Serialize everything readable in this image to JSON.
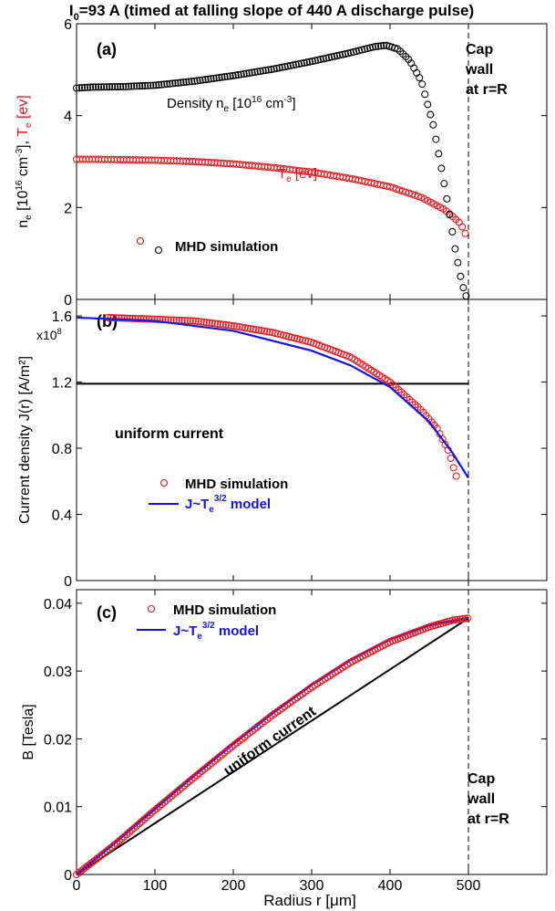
{
  "figure": {
    "title_main": "I",
    "title_sub": "0",
    "title_rest": "=93 A (timed at falling slope of 440 A discharge pulse)"
  },
  "colors": {
    "black": "#000000",
    "red": "#e8141b",
    "blue": "#1414e0"
  },
  "chart_data": [
    {
      "panel": "(a)",
      "type": "scatter",
      "xlim": [
        0,
        600
      ],
      "ylim": [
        0,
        6
      ],
      "yticks": [
        "0",
        "2",
        "4",
        "6"
      ],
      "xticks": [
        "0",
        "100",
        "200",
        "300",
        "400",
        "500"
      ],
      "ylabel": {
        "p1": "n",
        "s1": "e",
        "p2": " [10",
        "s2": "16",
        "p3": " cm",
        "s3": "-3",
        "p4": "], ",
        "p5": "T",
        "s5": "e",
        "p6": " [ev]"
      },
      "annotations": {
        "density": {
          "p1": "Density n",
          "s1": "e",
          "p2": " [10",
          "s2": "16",
          "p3": " cm",
          "s3": "-3",
          "p4": "]"
        },
        "te": {
          "p1": "T",
          "s1": "e",
          "p2": " [ev]"
        },
        "wall": [
          "Cap",
          "wall",
          "at r=R"
        ]
      },
      "legend": {
        "label": "MHD simulation"
      },
      "series": [
        {
          "key": "density",
          "points": [
            [
              0,
              4.6
            ],
            [
              20,
              4.62
            ],
            [
              60,
              4.63
            ],
            [
              100,
              4.66
            ],
            [
              150,
              4.75
            ],
            [
              200,
              4.87
            ],
            [
              250,
              5.01
            ],
            [
              300,
              5.18
            ],
            [
              350,
              5.37
            ],
            [
              380,
              5.5
            ],
            [
              395,
              5.53
            ],
            [
              410,
              5.45
            ],
            [
              425,
              5.2
            ],
            [
              440,
              4.75
            ],
            [
              455,
              3.8
            ],
            [
              465,
              2.9
            ],
            [
              475,
              1.95
            ],
            [
              483,
              1.1
            ],
            [
              490,
              0.5
            ],
            [
              495,
              0.15
            ],
            [
              499,
              0
            ]
          ]
        },
        {
          "key": "te",
          "points": [
            [
              0,
              3.05
            ],
            [
              20,
              3.05
            ],
            [
              100,
              3.03
            ],
            [
              150,
              3.0
            ],
            [
              200,
              2.95
            ],
            [
              250,
              2.87
            ],
            [
              300,
              2.77
            ],
            [
              350,
              2.63
            ],
            [
              400,
              2.45
            ],
            [
              440,
              2.22
            ],
            [
              470,
              1.95
            ],
            [
              490,
              1.65
            ],
            [
              497,
              1.4
            ],
            [
              499,
              1.2
            ]
          ]
        }
      ]
    },
    {
      "panel": "(b)",
      "type": "line",
      "xlim": [
        0,
        600
      ],
      "ylim": [
        0,
        1.7
      ],
      "y_multiplier": "x10",
      "y_multiplier_exp": "8",
      "yticks": [
        "0",
        "0.4",
        "0.8",
        "1.2",
        "1.6"
      ],
      "xticks": [
        "0",
        "100",
        "200",
        "300",
        "400",
        "500"
      ],
      "ylabel": "Current density J(r) [A/m²]",
      "uniform_label": "uniform current",
      "legend": {
        "mhd": "MHD simulation",
        "model_p1": "J~T",
        "model_s1": "e",
        "model_sup": "3/2",
        "model_p2": " model"
      },
      "uniform_value": 1.19,
      "series": [
        {
          "key": "mhd",
          "points": [
            [
              40,
              1.59
            ],
            [
              100,
              1.58
            ],
            [
              150,
              1.57
            ],
            [
              200,
              1.54
            ],
            [
              250,
              1.5
            ],
            [
              300,
              1.44
            ],
            [
              350,
              1.35
            ],
            [
              400,
              1.2
            ],
            [
              440,
              1.03
            ],
            [
              460,
              0.92
            ],
            [
              475,
              0.78
            ],
            [
              483,
              0.65
            ],
            [
              487,
              0.6
            ]
          ]
        },
        {
          "key": "model",
          "points": [
            [
              0,
              1.59
            ],
            [
              100,
              1.57
            ],
            [
              200,
              1.51
            ],
            [
              300,
              1.39
            ],
            [
              350,
              1.3
            ],
            [
              400,
              1.17
            ],
            [
              450,
              0.96
            ],
            [
              480,
              0.77
            ],
            [
              500,
              0.62
            ]
          ]
        }
      ]
    },
    {
      "panel": "(c)",
      "type": "line",
      "xlim": [
        0,
        600
      ],
      "ylim": [
        0,
        0.042
      ],
      "yticks": [
        "0",
        "0.01",
        "0.02",
        "0.03",
        "0.04"
      ],
      "xticks": [
        "0",
        "100",
        "200",
        "300",
        "400",
        "500"
      ],
      "ylabel": "B [Tesla]",
      "xlabel": "Radius r [μm]",
      "uniform_label": "uniform current",
      "legend": {
        "mhd": "MHD simulation",
        "model_p1": "J~T",
        "model_s1": "e",
        "model_sup": "3/2",
        "model_p2": " model"
      },
      "annotations": {
        "wall": [
          "Cap",
          "wall",
          "at r=R"
        ]
      },
      "series": [
        {
          "key": "mhd",
          "points": [
            [
              0,
              0
            ],
            [
              50,
              0.0045
            ],
            [
              100,
              0.0095
            ],
            [
              150,
              0.0143
            ],
            [
              200,
              0.019
            ],
            [
              250,
              0.0235
            ],
            [
              300,
              0.0276
            ],
            [
              350,
              0.0313
            ],
            [
              400,
              0.0343
            ],
            [
              450,
              0.0365
            ],
            [
              480,
              0.0375
            ],
            [
              500,
              0.0378
            ]
          ]
        },
        {
          "key": "model",
          "points": [
            [
              0,
              0
            ],
            [
              50,
              0.0048
            ],
            [
              100,
              0.0097
            ],
            [
              150,
              0.0146
            ],
            [
              200,
              0.0193
            ],
            [
              250,
              0.0238
            ],
            [
              300,
              0.028
            ],
            [
              350,
              0.0317
            ],
            [
              400,
              0.0347
            ],
            [
              450,
              0.0368
            ],
            [
              500,
              0.0378
            ]
          ]
        },
        {
          "key": "uniform",
          "points": [
            [
              0,
              0
            ],
            [
              500,
              0.0378
            ]
          ]
        }
      ]
    }
  ]
}
